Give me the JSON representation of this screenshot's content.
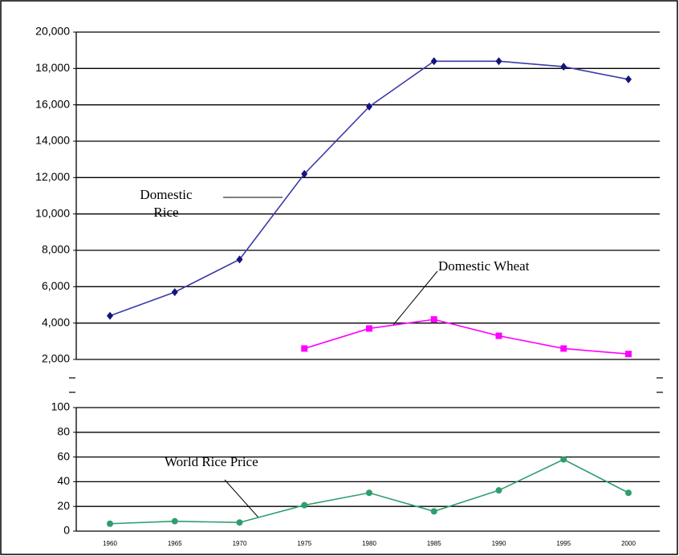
{
  "chart_data": [
    {
      "type": "line",
      "ylim": [
        2000,
        20000
      ],
      "yticks": [
        {
          "value": 2000,
          "label": "2,000"
        },
        {
          "value": 4000,
          "label": "4,000"
        },
        {
          "value": 6000,
          "label": "6,000"
        },
        {
          "value": 8000,
          "label": "8,000"
        },
        {
          "value": 10000,
          "label": "10,000"
        },
        {
          "value": 12000,
          "label": "12,000"
        },
        {
          "value": 14000,
          "label": "14,000"
        },
        {
          "value": 16000,
          "label": "16,000"
        },
        {
          "value": 18000,
          "label": "18,000"
        },
        {
          "value": 20000,
          "label": "20,000"
        }
      ],
      "grid": true,
      "series": [
        {
          "name": "Domestic Rice",
          "color": "#3a3aaa",
          "values": [
            4400,
            5700,
            7500,
            12200,
            15900,
            18400,
            18400,
            18100,
            17400
          ]
        },
        {
          "name": "Domestic Wheat",
          "color": "#ff00ff",
          "values": [
            null,
            null,
            null,
            2600,
            3700,
            4200,
            3300,
            2600,
            2300
          ]
        }
      ]
    },
    {
      "type": "line",
      "categories": [
        "1960",
        "1965",
        "1970",
        "1975",
        "1980",
        "1985",
        "1990",
        "1995",
        "2000"
      ],
      "ylim": [
        0,
        100
      ],
      "yticks": [
        0,
        20,
        40,
        60,
        80,
        100
      ],
      "grid": true,
      "series": [
        {
          "name": "World Rice Price",
          "color": "#2e9e6e",
          "values": [
            6,
            8,
            7,
            21,
            31,
            16,
            33,
            58,
            31
          ]
        }
      ]
    }
  ]
}
